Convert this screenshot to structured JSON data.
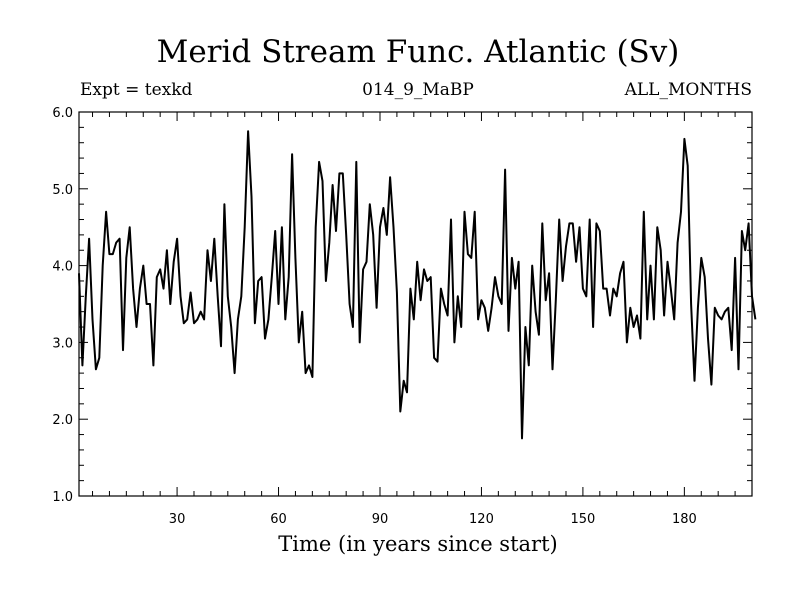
{
  "chart_data": {
    "type": "line",
    "title": "Merid Stream Func. Atlantic (Sv)",
    "subtitle_left": "Expt = texkd",
    "subtitle_center": "014_9_MaBP",
    "subtitle_right": "ALL_MONTHS",
    "xlabel": "Time (in years since start)",
    "ylabel": "",
    "xlim": [
      1,
      200
    ],
    "ylim": [
      1.0,
      6.0
    ],
    "x_ticks": [
      30,
      60,
      90,
      120,
      150,
      180
    ],
    "y_ticks": [
      "1.0",
      "2.0",
      "3.0",
      "4.0",
      "5.0",
      "6.0"
    ],
    "series": [
      {
        "name": "Merid Stream Func. Atlantic",
        "color": "#000000",
        "values": [
          3.9,
          2.7,
          3.6,
          4.35,
          3.3,
          2.65,
          2.8,
          4.0,
          4.7,
          4.15,
          4.15,
          4.3,
          4.35,
          2.9,
          4.1,
          4.5,
          3.7,
          3.2,
          3.7,
          4.0,
          3.5,
          3.5,
          2.7,
          3.85,
          3.95,
          3.7,
          4.2,
          3.5,
          4.05,
          4.35,
          3.6,
          3.25,
          3.3,
          3.65,
          3.25,
          3.3,
          3.4,
          3.3,
          4.2,
          3.8,
          4.35,
          3.6,
          2.95,
          4.8,
          3.6,
          3.2,
          2.6,
          3.3,
          3.6,
          4.5,
          5.75,
          4.9,
          3.25,
          3.8,
          3.85,
          3.05,
          3.3,
          3.85,
          4.45,
          3.5,
          4.5,
          3.3,
          3.85,
          5.45,
          4.1,
          3.0,
          3.4,
          2.6,
          2.7,
          2.55,
          4.5,
          5.35,
          5.1,
          3.8,
          4.3,
          5.05,
          4.45,
          5.2,
          5.2,
          4.4,
          3.5,
          3.2,
          5.35,
          3.0,
          3.95,
          4.05,
          4.8,
          4.4,
          3.45,
          4.5,
          4.75,
          4.4,
          5.15,
          4.5,
          3.65,
          2.1,
          2.5,
          2.35,
          3.7,
          3.3,
          4.05,
          3.55,
          3.95,
          3.8,
          3.85,
          2.8,
          2.75,
          3.7,
          3.5,
          3.35,
          4.6,
          3.0,
          3.6,
          3.2,
          4.7,
          4.15,
          4.1,
          4.7,
          3.3,
          3.55,
          3.45,
          3.15,
          3.45,
          3.85,
          3.6,
          3.5,
          5.25,
          3.15,
          4.1,
          3.7,
          4.05,
          1.75,
          3.2,
          2.7,
          4.0,
          3.4,
          3.1,
          4.55,
          3.55,
          3.9,
          2.65,
          3.55,
          4.6,
          3.8,
          4.25,
          4.55,
          4.55,
          4.05,
          4.5,
          3.7,
          3.6,
          4.6,
          3.2,
          4.55,
          4.45,
          3.7,
          3.7,
          3.35,
          3.7,
          3.6,
          3.9,
          4.05,
          3.0,
          3.45,
          3.2,
          3.35,
          3.05,
          4.7,
          3.3,
          4.0,
          3.3,
          4.5,
          4.2,
          3.35,
          4.05,
          3.7,
          3.3,
          4.3,
          4.7,
          5.65,
          5.3,
          3.5,
          2.5,
          3.45,
          4.1,
          3.85,
          3.05,
          2.45,
          3.45,
          3.35,
          3.3,
          3.4,
          3.45,
          2.9,
          4.1,
          2.65,
          4.45,
          4.2,
          4.55,
          3.6,
          3.3
        ]
      }
    ]
  }
}
